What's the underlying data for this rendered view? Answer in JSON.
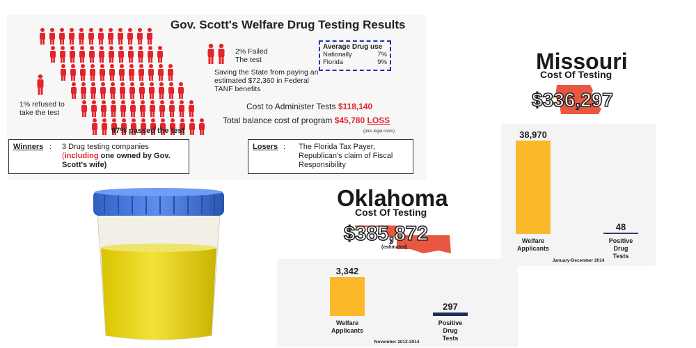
{
  "florida": {
    "title": "Gov. Scott's Welfare Drug Testing Results",
    "failed": [
      "2% Failed",
      "The test"
    ],
    "savings": "Saving the State from paying an estimated $72,360 in Federal TANF benefits",
    "refused": [
      "1% refused to",
      "take the test"
    ],
    "passed": "97% passed the test",
    "average": {
      "heading": "Average Drug use",
      "rows": [
        {
          "label": "Nationally",
          "value": "7%"
        },
        {
          "label": "Florida",
          "value": "9%"
        }
      ]
    },
    "cost_label": "Cost to Administer Tests",
    "cost_value": "$118,140",
    "total_label": "Total balance cost of program",
    "total_value": "$45,780",
    "total_suffix": "LOSS",
    "legal_note": "(plus legal costs)",
    "winners": {
      "key": "Winners",
      "line1": "3 Drug testing companies",
      "paren_open": "(",
      "including": "including",
      "line2": " one owned by Gov. Scott's wife)"
    },
    "losers": {
      "key": "Losers",
      "text": "The Florida Tax Payer, Republican's claim of Fiscal Responsibility"
    },
    "colors": {
      "figures": "#e3242b",
      "accent": "#e3242b",
      "dashed_box": "#2233aa"
    }
  },
  "missouri": {
    "title": "Missouri",
    "subtitle": "Cost Of Testing",
    "cost": "$336,297",
    "map_color": "#e8573f"
  },
  "oklahoma": {
    "title": "Oklahoma",
    "subtitle": "Cost Of Testing",
    "cost": "$385,872",
    "estimated": "(estimated)",
    "map_color": "#e8573f"
  },
  "chart_data": [
    {
      "type": "bar",
      "categories": [
        "Welfare Applicants",
        "Positive Drug Tests"
      ],
      "values": [
        38970,
        48
      ],
      "value_labels": [
        "38,970",
        "48"
      ],
      "period": "January-December 2014",
      "colors": [
        "#fbb829",
        "#1b2b5a"
      ]
    },
    {
      "type": "bar",
      "categories": [
        "Welfare Applicants",
        "Positive Drug Tests"
      ],
      "values": [
        3342,
        297
      ],
      "value_labels": [
        "3,342",
        "297"
      ],
      "period": "November 2012-2014",
      "colors": [
        "#fbb829",
        "#1b2b5a"
      ]
    }
  ],
  "cup": {
    "lid_color": "#3a6fd1",
    "liquid_color": "#e2d10c"
  }
}
